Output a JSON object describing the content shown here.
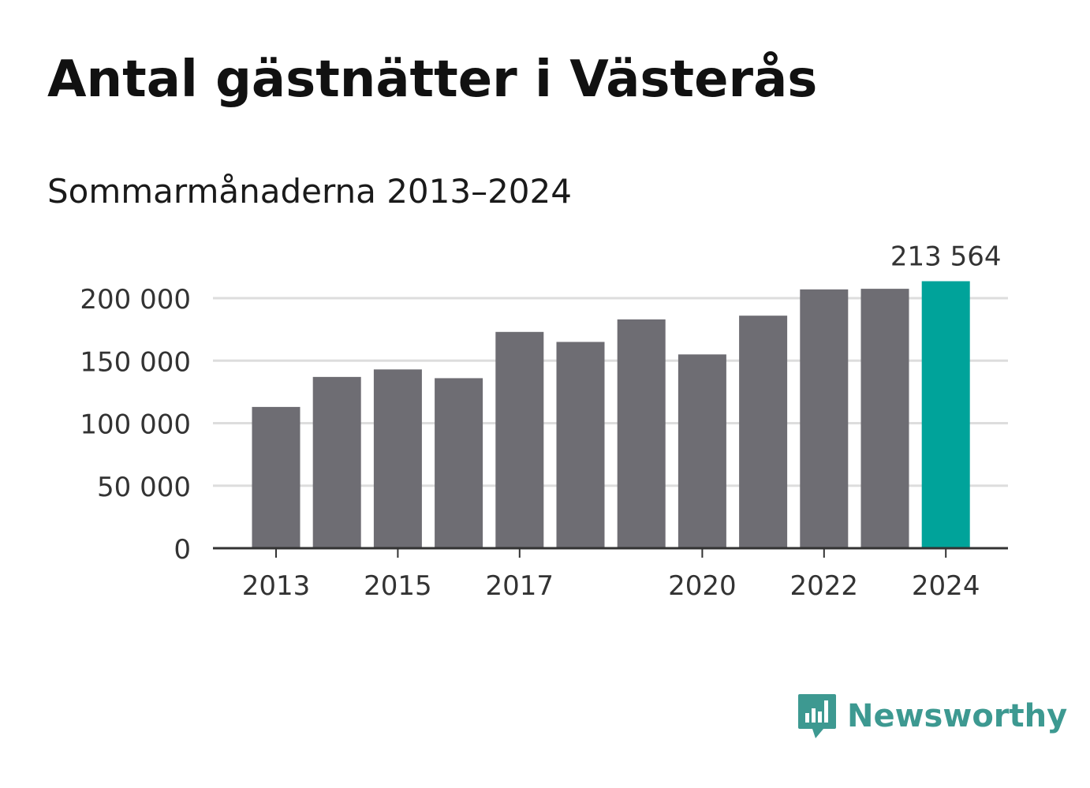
{
  "title": "Antal gästnätter i Västerås",
  "subtitle": "Sommarmånaderna 2013–2024",
  "brand": {
    "name": "Newsworthy",
    "icon": "newsworthy-logo-icon",
    "color": "#3d9991"
  },
  "colors": {
    "bar": "#6e6d73",
    "highlight": "#00a39a",
    "grid": "#dddddd",
    "axis": "#333333"
  },
  "chart_data": {
    "type": "bar",
    "categories": [
      "2013",
      "2014",
      "2015",
      "2016",
      "2017",
      "2018",
      "2019",
      "2020",
      "2021",
      "2022",
      "2023",
      "2024"
    ],
    "values": [
      113000,
      137000,
      143000,
      136000,
      173000,
      165000,
      183000,
      155000,
      186000,
      207000,
      207500,
      213564
    ],
    "x_tick_labels": [
      "2013",
      "",
      "2015",
      "",
      "2017",
      "",
      "",
      "2020",
      "",
      "2022",
      "",
      "2024"
    ],
    "ylim": [
      0,
      200000
    ],
    "y_ticks": [
      0,
      50000,
      100000,
      150000,
      200000
    ],
    "y_tick_labels": [
      "0",
      "50 000",
      "100 000",
      "150 000",
      "200 000"
    ],
    "highlight_index": 11,
    "highlight_label": "213 564",
    "grid": true,
    "xlabel": "",
    "ylabel": ""
  }
}
